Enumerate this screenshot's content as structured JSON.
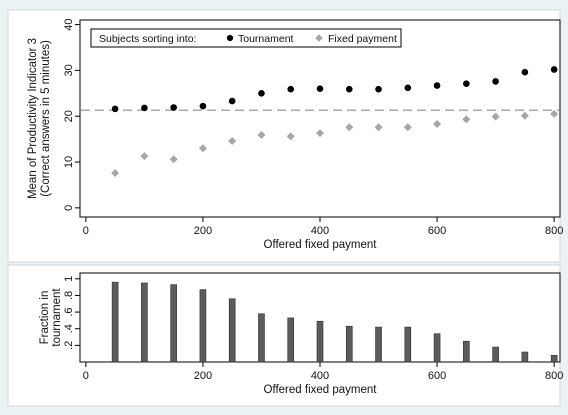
{
  "chart_data": [
    {
      "type": "scatter",
      "xlabel": "Offered fixed payment",
      "ylabel_lines": [
        "Mean of Productivity Indicator 3",
        "(Correct answers in 5 minutes)"
      ],
      "xlim": [
        -10,
        810
      ],
      "ylim": [
        -2,
        41
      ],
      "xticks": [
        0,
        200,
        400,
        600,
        800
      ],
      "yticks": [
        0,
        10,
        20,
        30,
        40
      ],
      "reference_line": {
        "y": 21.3,
        "style": "dashed",
        "color": "#aaaaaa"
      },
      "legend": {
        "title": "Subjects sorting into:",
        "position": "top-left"
      },
      "series": [
        {
          "name": "Tournament",
          "marker": "circle",
          "color": "#000000",
          "x": [
            50,
            100,
            150,
            200,
            250,
            300,
            350,
            400,
            450,
            500,
            550,
            600,
            650,
            700,
            750,
            800
          ],
          "y": [
            21.6,
            21.8,
            21.9,
            22.2,
            23.3,
            25.0,
            25.9,
            26.0,
            25.9,
            25.9,
            26.2,
            26.7,
            27.1,
            27.6,
            29.6,
            30.2
          ]
        },
        {
          "name": "Fixed payment",
          "marker": "diamond",
          "color": "#a6a6a6",
          "x": [
            50,
            100,
            150,
            200,
            250,
            300,
            350,
            400,
            450,
            500,
            550,
            600,
            650,
            700,
            750,
            800
          ],
          "y": [
            7.6,
            11.3,
            10.6,
            13.0,
            14.6,
            15.9,
            15.6,
            16.3,
            17.6,
            17.6,
            17.6,
            18.3,
            19.3,
            19.9,
            20.1,
            20.5
          ]
        }
      ]
    },
    {
      "type": "bar",
      "xlabel": "Offered fixed payment",
      "ylabel_lines": [
        "Fraction in",
        "tournament"
      ],
      "xlim": [
        -10,
        810
      ],
      "ylim": [
        0,
        1.07
      ],
      "xticks": [
        0,
        200,
        400,
        600,
        800
      ],
      "yticks": [
        0.2,
        0.4,
        0.6,
        0.8,
        1
      ],
      "ytick_labels": [
        ".2",
        ".4",
        ".6",
        ".8",
        "1"
      ],
      "bar_color": "#5c5c5c",
      "x": [
        50,
        100,
        150,
        200,
        250,
        300,
        350,
        400,
        450,
        500,
        550,
        600,
        650,
        700,
        750,
        800
      ],
      "values": [
        0.96,
        0.95,
        0.93,
        0.87,
        0.76,
        0.58,
        0.53,
        0.49,
        0.43,
        0.42,
        0.42,
        0.34,
        0.25,
        0.18,
        0.12,
        0.08
      ]
    }
  ]
}
